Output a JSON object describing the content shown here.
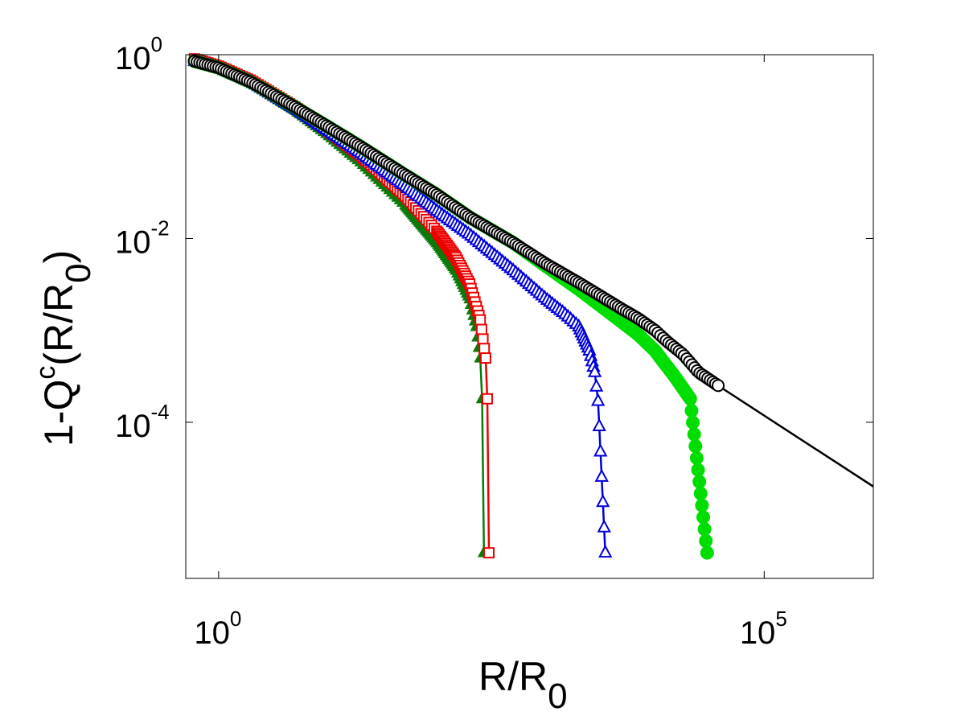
{
  "chart_data": {
    "type": "line",
    "title": "",
    "xlabel": "R/R0",
    "ylabel": "1-Qc(R/R0)",
    "xlabel_parts": {
      "main": "R/R",
      "sub": "0"
    },
    "ylabel_parts": {
      "pre": "1-Q",
      "sup": "c",
      "mid": "(R/R",
      "sub": "0",
      "post": ")"
    },
    "xscale": "log",
    "yscale": "log",
    "xlim": [
      0.5,
      1000000
    ],
    "ylim": [
      2e-06,
      1.0
    ],
    "xticks": [
      {
        "value": 1,
        "base": "10",
        "exp": "0"
      },
      {
        "value": 100000,
        "base": "10",
        "exp": "5"
      }
    ],
    "yticks": [
      {
        "value": 1,
        "base": "10",
        "exp": "0"
      },
      {
        "value": 0.01,
        "base": "10",
        "exp": "-2"
      },
      {
        "value": 0.0001,
        "base": "10",
        "exp": "-4"
      }
    ],
    "grid": false,
    "legend": "none",
    "series": [
      {
        "color": "#000000",
        "marker": "open-circle",
        "x": [
          0.6,
          1,
          2,
          5,
          10,
          20,
          50,
          100,
          200,
          500,
          1000,
          2000,
          5000,
          7000,
          10000,
          13000,
          18000,
          25000,
          40000,
          1000000
        ],
        "y": [
          0.85,
          0.72,
          0.5,
          0.27,
          0.165,
          0.1,
          0.05,
          0.03,
          0.017,
          0.009,
          0.0053,
          0.0033,
          0.0017,
          0.00135,
          0.001,
          0.00075,
          0.00055,
          0.00035,
          0.00024,
          2e-05
        ]
      },
      {
        "color": "#00dd00",
        "marker": "filled-circle",
        "x": [
          0.6,
          1,
          2,
          5,
          10,
          20,
          50,
          100,
          200,
          500,
          1000,
          2000,
          4000,
          7000,
          10000,
          12000,
          15000,
          21000,
          30000
        ],
        "y": [
          0.85,
          0.72,
          0.5,
          0.27,
          0.165,
          0.1,
          0.05,
          0.03,
          0.017,
          0.009,
          0.005,
          0.0028,
          0.0015,
          0.0009,
          0.0006,
          0.00045,
          0.00032,
          0.00018,
          3.8e-06
        ]
      },
      {
        "color": "#0000dd",
        "marker": "open-triangle",
        "x": [
          0.6,
          1,
          2,
          5,
          10,
          20,
          50,
          100,
          200,
          500,
          1000,
          1500,
          2000,
          2500,
          2800,
          3000,
          3500
        ],
        "y": [
          0.85,
          0.72,
          0.5,
          0.26,
          0.15,
          0.085,
          0.038,
          0.02,
          0.011,
          0.0045,
          0.0022,
          0.0015,
          0.0011,
          0.0006,
          0.00035,
          0.00017,
          3.8e-06
        ]
      },
      {
        "color": "#ee0000",
        "marker": "open-square",
        "x": [
          0.6,
          1,
          2,
          5,
          10,
          20,
          50,
          100,
          150,
          200,
          250,
          280,
          290,
          300
        ],
        "y": [
          0.9,
          0.75,
          0.52,
          0.27,
          0.15,
          0.08,
          0.03,
          0.012,
          0.0062,
          0.0032,
          0.0013,
          0.0005,
          0.00018,
          3.8e-06
        ]
      },
      {
        "color": "#0a7a0a",
        "marker": "filled-triangle",
        "x": [
          0.6,
          1,
          2,
          5,
          10,
          20,
          50,
          100,
          150,
          200,
          230,
          250,
          260,
          270
        ],
        "y": [
          0.88,
          0.73,
          0.5,
          0.25,
          0.135,
          0.068,
          0.024,
          0.009,
          0.0045,
          0.0022,
          0.0011,
          0.0005,
          0.00018,
          3.8e-06
        ]
      }
    ]
  }
}
